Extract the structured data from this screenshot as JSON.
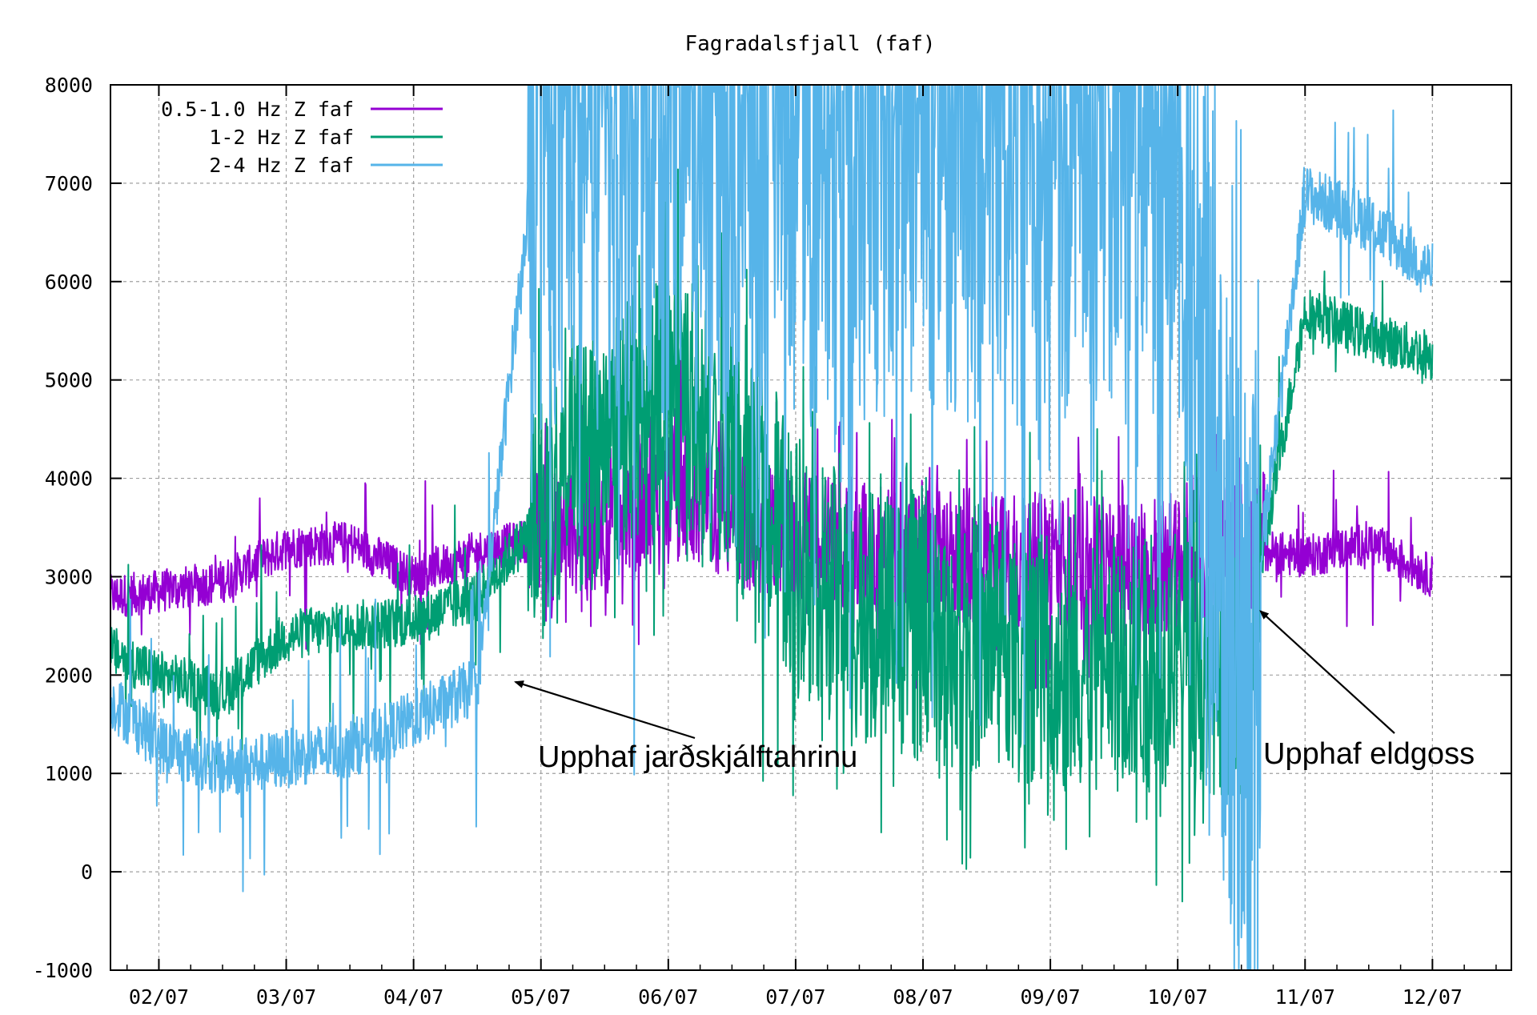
{
  "chart_data": {
    "type": "line",
    "title": "Fagradalsfjall (faf)",
    "xlabel": "",
    "ylabel": "",
    "x_tick_labels": [
      "02/07",
      "03/07",
      "04/07",
      "05/07",
      "06/07",
      "07/07",
      "08/07",
      "09/07",
      "10/07",
      "11/07",
      "12/07"
    ],
    "x_unit": "day (0 = 02/07 00:00)",
    "xlim": [
      -0.38,
      10.62
    ],
    "ylim": [
      -1000,
      8000
    ],
    "y_ticks": [
      -1000,
      0,
      1000,
      2000,
      3000,
      4000,
      5000,
      6000,
      7000,
      8000
    ],
    "grid": true,
    "legend_position": "top-left",
    "series": [
      {
        "name": "0.5-1.0 Hz Z faf",
        "color": "#9400d3",
        "x": [
          -0.38,
          0.0,
          0.5,
          1.0,
          1.5,
          2.0,
          2.5,
          3.0,
          3.5,
          4.0,
          4.5,
          5.0,
          5.5,
          6.0,
          6.5,
          7.0,
          7.5,
          8.0,
          8.5,
          9.0,
          9.5,
          10.0
        ],
        "values": [
          2800,
          2850,
          2950,
          3300,
          3350,
          3000,
          3250,
          3400,
          3600,
          3900,
          3600,
          3400,
          3300,
          3200,
          3200,
          3150,
          3100,
          3100,
          3300,
          3200,
          3350,
          3000
        ]
      },
      {
        "name": "1-2 Hz Z faf",
        "color": "#009e73",
        "x": [
          -0.38,
          0.0,
          0.5,
          1.0,
          1.5,
          2.0,
          2.5,
          3.0,
          3.5,
          4.0,
          4.5,
          5.0,
          5.5,
          6.0,
          6.5,
          7.0,
          7.5,
          8.0,
          8.5,
          9.0,
          9.5,
          10.0
        ],
        "values": [
          2250,
          2000,
          1800,
          2400,
          2500,
          2550,
          2800,
          3600,
          4400,
          4800,
          4200,
          3200,
          2600,
          2400,
          2300,
          2100,
          2000,
          2200,
          2000,
          5700,
          5450,
          5250
        ]
      },
      {
        "name": "2-4 Hz Z faf",
        "color": "#56b4e9",
        "x": [
          -0.38,
          0.0,
          0.5,
          1.0,
          1.5,
          2.0,
          2.5,
          3.0,
          3.5,
          4.0,
          4.5,
          5.0,
          5.5,
          6.0,
          6.5,
          7.0,
          7.5,
          8.0,
          8.5,
          9.0,
          9.5,
          10.0
        ],
        "values": [
          1750,
          1300,
          1050,
          1150,
          1250,
          1550,
          1900,
          8000,
          8000,
          8000,
          8000,
          8000,
          8000,
          8000,
          8000,
          8000,
          8000,
          8000,
          1600,
          6900,
          6600,
          6100
        ]
      }
    ],
    "annotations": [
      {
        "text": "Upphaf jarðskjálftahrinu",
        "x": 2.8,
        "y": 1930
      },
      {
        "text": "Upphaf eldgoss",
        "x": 8.65,
        "y": 2650
      }
    ]
  }
}
